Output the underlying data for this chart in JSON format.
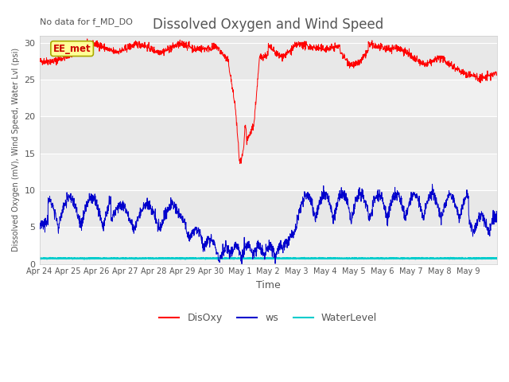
{
  "title": "Dissolved Oxygen and Wind Speed",
  "top_left_text": "No data for f_MD_DO",
  "ylabel": "Dissolved Oxygen (mV), Wind Speed, Water Lvl (psi)",
  "xlabel": "Time",
  "ylim": [
    0,
    31
  ],
  "yticks": [
    0,
    5,
    10,
    15,
    20,
    25,
    30
  ],
  "xtick_labels": [
    "Apr 24",
    "Apr 25",
    "Apr 26",
    "Apr 27",
    "Apr 28",
    "Apr 29",
    "Apr 30",
    "May 1",
    "May 2",
    "May 3",
    "May 4",
    "May 5",
    "May 6",
    "May 7",
    "May 8",
    "May 9"
  ],
  "fig_bg_color": "#ffffff",
  "plot_bg_color": "#e8e8e8",
  "band_color_light": "#f0f0f0",
  "band_color_dark": "#e0e0e0",
  "grid_color": "#ffffff",
  "label_box_text": "EE_met",
  "label_box_facecolor": "#ffff99",
  "label_box_edgecolor": "#aaaa00",
  "disoxy_color": "#ff0000",
  "ws_color": "#0000cc",
  "waterlevel_color": "#00cccc",
  "legend_labels": [
    "DisOxy",
    "ws",
    "WaterLevel"
  ],
  "title_color": "#555555",
  "tick_color": "#555555",
  "label_color": "#555555"
}
